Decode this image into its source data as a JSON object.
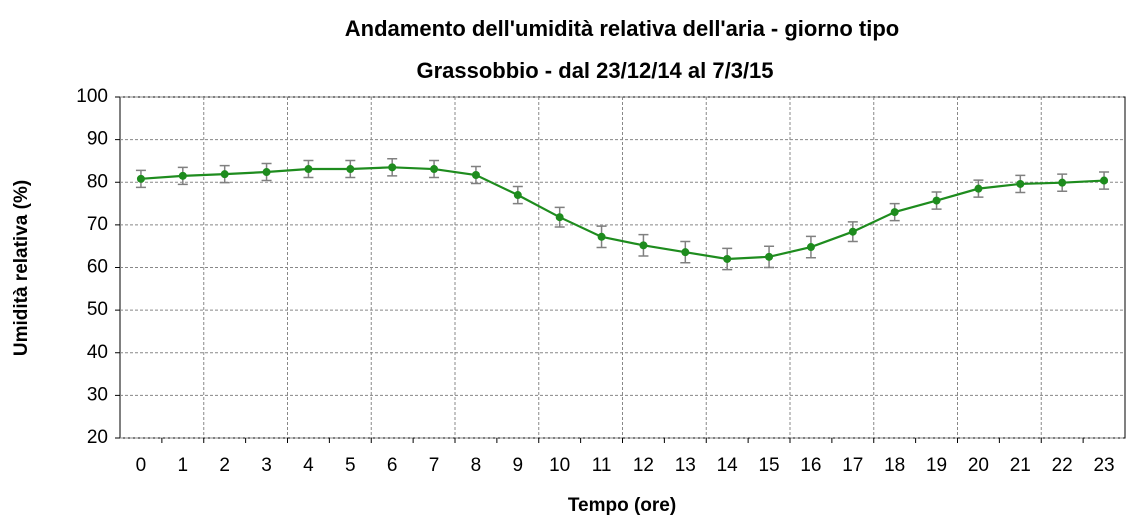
{
  "chart_data": {
    "type": "line",
    "title": "Andamento dell'umidità relativa dell'aria - giorno tipo",
    "subtitle": "Grassobbio - dal 23/12/14 al 7/3/15",
    "x_label": "Tempo (ore)",
    "y_label": "Umidità relativa (%)",
    "categories": [
      "0",
      "1",
      "2",
      "3",
      "4",
      "5",
      "6",
      "7",
      "8",
      "9",
      "10",
      "11",
      "12",
      "13",
      "14",
      "15",
      "16",
      "17",
      "18",
      "19",
      "20",
      "21",
      "22",
      "23"
    ],
    "series": [
      {
        "color": "#1e8c1e",
        "values": [
          80.8,
          81.5,
          81.9,
          82.4,
          83.1,
          83.1,
          83.5,
          83.1,
          81.7,
          77.0,
          71.8,
          67.2,
          65.2,
          63.6,
          62.0,
          62.5,
          64.8,
          68.4,
          73.0,
          75.7,
          78.5,
          79.6,
          79.9,
          80.4
        ],
        "errors": [
          2,
          2,
          2,
          2,
          2,
          2,
          2,
          2,
          2,
          2,
          2.3,
          2.5,
          2.5,
          2.5,
          2.5,
          2.5,
          2.5,
          2.3,
          2,
          2,
          2,
          2,
          2,
          2
        ],
        "error_color": "#808080"
      }
    ],
    "ylim": [
      20,
      100
    ],
    "yticks": [
      20,
      30,
      40,
      50,
      60,
      70,
      80,
      90,
      100
    ],
    "grid": true
  }
}
